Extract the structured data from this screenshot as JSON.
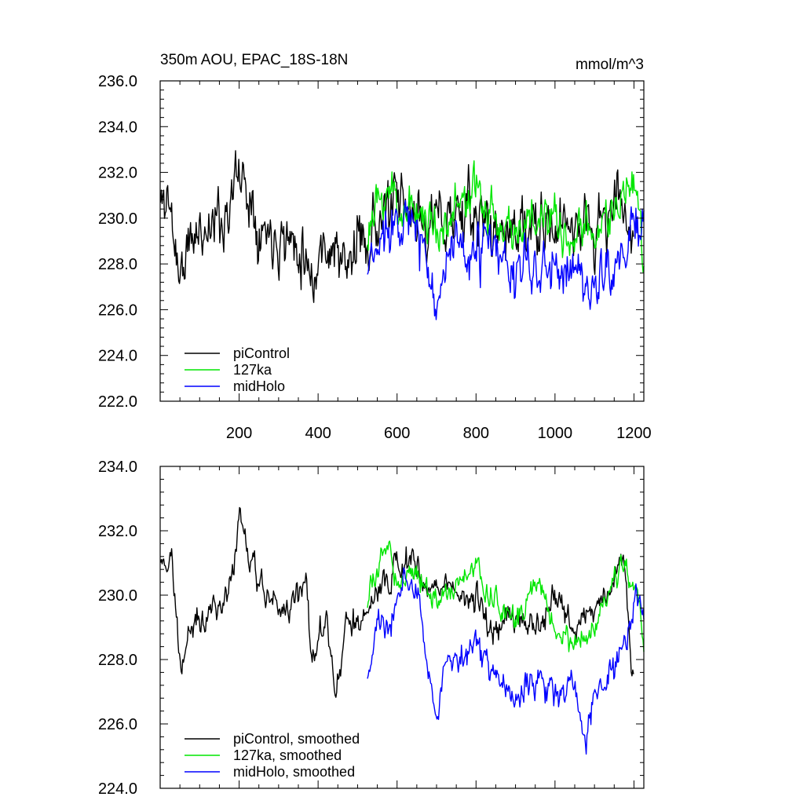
{
  "figure": {
    "title_left": "350m AOU, EPAC_18S-18N",
    "title_right": "mmol/m^3"
  },
  "colors": {
    "piControl": "#000000",
    "127ka": "#00e600",
    "midHolo": "#0000ff"
  },
  "chart_data": [
    {
      "type": "line",
      "panel": "top",
      "title": "350m AOU, EPAC_18S-18N",
      "units": "mmol/m^3",
      "xlim": [
        0,
        1225
      ],
      "ylim": [
        222,
        236
      ],
      "xticks": [
        200,
        400,
        600,
        800,
        1000,
        1200
      ],
      "xtick_labels": [
        "200",
        "400",
        "600",
        "800",
        "1000",
        "1200"
      ],
      "yticks": [
        222,
        224,
        226,
        228,
        230,
        232,
        234,
        236
      ],
      "ytick_labels": [
        "222.0",
        "224.0",
        "226.0",
        "228.0",
        "230.0",
        "232.0",
        "234.0",
        "236.0"
      ],
      "legend_position": "bottom-left",
      "series": [
        {
          "name": "piControl",
          "x_start": 1,
          "x_end": 1200,
          "mean": 229.6,
          "noise": 1.55,
          "anchors": [
            [
              1,
              230.5
            ],
            [
              20,
              231.0
            ],
            [
              50,
              227.5
            ],
            [
              80,
              229.0
            ],
            [
              120,
              229.8
            ],
            [
              160,
              230.0
            ],
            [
              200,
              232.0
            ],
            [
              230,
              231.0
            ],
            [
              260,
              229.5
            ],
            [
              300,
              229.5
            ],
            [
              330,
              229.0
            ],
            [
              360,
              229.0
            ],
            [
              385,
              227.5
            ],
            [
              420,
              229.0
            ],
            [
              450,
              228.5
            ],
            [
              470,
              227.5
            ],
            [
              500,
              229.0
            ],
            [
              550,
              229.8
            ],
            [
              600,
              230.5
            ],
            [
              650,
              230.0
            ],
            [
              700,
              229.8
            ],
            [
              750,
              230.3
            ],
            [
              800,
              230.0
            ],
            [
              850,
              229.5
            ],
            [
              900,
              229.5
            ],
            [
              950,
              229.3
            ],
            [
              1000,
              229.5
            ],
            [
              1050,
              230.0
            ],
            [
              1100,
              229.3
            ],
            [
              1150,
              230.5
            ],
            [
              1175,
              231.0
            ],
            [
              1200,
              228.5
            ]
          ],
          "seed": 11
        },
        {
          "name": "127ka",
          "x_start": 525,
          "x_end": 1225,
          "mean": 230.2,
          "noise": 1.2,
          "anchors": [
            [
              525,
              229.5
            ],
            [
              560,
              230.5
            ],
            [
              580,
              231.5
            ],
            [
              600,
              230.5
            ],
            [
              650,
              230.5
            ],
            [
              700,
              229.5
            ],
            [
              750,
              230.5
            ],
            [
              800,
              231.0
            ],
            [
              850,
              230.0
            ],
            [
              900,
              229.5
            ],
            [
              950,
              230.0
            ],
            [
              1000,
              229.5
            ],
            [
              1050,
              229.0
            ],
            [
              1100,
              229.5
            ],
            [
              1150,
              230.5
            ],
            [
              1175,
              231.0
            ],
            [
              1210,
              230.5
            ],
            [
              1225,
              228.0
            ]
          ],
          "seed": 23
        },
        {
          "name": "midHolo",
          "x_start": 525,
          "x_end": 1225,
          "mean": 228.8,
          "noise": 1.35,
          "anchors": [
            [
              525,
              227.5
            ],
            [
              560,
              229.0
            ],
            [
              600,
              230.5
            ],
            [
              640,
              229.5
            ],
            [
              680,
              228.0
            ],
            [
              700,
              226.5
            ],
            [
              730,
              228.5
            ],
            [
              780,
              228.0
            ],
            [
              820,
              229.0
            ],
            [
              860,
              228.0
            ],
            [
              900,
              227.5
            ],
            [
              950,
              228.0
            ],
            [
              1000,
              227.5
            ],
            [
              1040,
              228.0
            ],
            [
              1080,
              227.0
            ],
            [
              1120,
              227.5
            ],
            [
              1150,
              228.0
            ],
            [
              1180,
              228.5
            ],
            [
              1200,
              229.5
            ],
            [
              1225,
              229.5
            ]
          ],
          "seed": 37
        }
      ],
      "legend": [
        {
          "name": "piControl",
          "label": "piControl"
        },
        {
          "name": "127ka",
          "label": "127ka"
        },
        {
          "name": "midHolo",
          "label": "midHolo"
        }
      ]
    },
    {
      "type": "line",
      "panel": "bottom",
      "xlim": [
        0,
        1225
      ],
      "ylim": [
        224,
        234
      ],
      "xticks": [
        200,
        400,
        600,
        800,
        1000,
        1200
      ],
      "yticks": [
        224,
        226,
        228,
        230,
        232,
        234
      ],
      "ytick_labels": [
        "224.0",
        "226.0",
        "228.0",
        "230.0",
        "232.0",
        "234.0"
      ],
      "legend_position": "bottom-left",
      "series": [
        {
          "name": "piControl, smoothed",
          "x_start": 1,
          "x_end": 1200,
          "mean": 229.6,
          "noise": 0.55,
          "anchors": [
            [
              1,
              230.8
            ],
            [
              15,
              231.0
            ],
            [
              30,
              231.5
            ],
            [
              45,
              228.5
            ],
            [
              55,
              227.5
            ],
            [
              70,
              228.8
            ],
            [
              100,
              229.2
            ],
            [
              130,
              229.5
            ],
            [
              170,
              229.8
            ],
            [
              200,
              232.5
            ],
            [
              230,
              231.0
            ],
            [
              260,
              230.0
            ],
            [
              300,
              229.5
            ],
            [
              340,
              229.8
            ],
            [
              370,
              230.5
            ],
            [
              385,
              228.0
            ],
            [
              420,
              229.3
            ],
            [
              445,
              226.8
            ],
            [
              470,
              229.0
            ],
            [
              500,
              229.0
            ],
            [
              530,
              229.5
            ],
            [
              560,
              230.5
            ],
            [
              600,
              230.8
            ],
            [
              640,
              231.0
            ],
            [
              680,
              230.0
            ],
            [
              720,
              230.5
            ],
            [
              760,
              230.0
            ],
            [
              800,
              229.8
            ],
            [
              840,
              229.0
            ],
            [
              880,
              229.5
            ],
            [
              920,
              229.0
            ],
            [
              960,
              229.0
            ],
            [
              1000,
              230.0
            ],
            [
              1050,
              229.0
            ],
            [
              1100,
              229.5
            ],
            [
              1150,
              230.5
            ],
            [
              1175,
              231.3
            ],
            [
              1195,
              227.5
            ]
          ],
          "seed": 41
        },
        {
          "name": "127ka, smoothed",
          "x_start": 525,
          "x_end": 1225,
          "mean": 230.0,
          "noise": 0.45,
          "anchors": [
            [
              525,
              229.8
            ],
            [
              560,
              231.0
            ],
            [
              575,
              231.8
            ],
            [
              600,
              230.5
            ],
            [
              650,
              230.8
            ],
            [
              700,
              229.8
            ],
            [
              750,
              230.2
            ],
            [
              800,
              231.0
            ],
            [
              830,
              230.0
            ],
            [
              870,
              229.5
            ],
            [
              910,
              229.3
            ],
            [
              960,
              230.5
            ],
            [
              1000,
              229.0
            ],
            [
              1040,
              228.5
            ],
            [
              1080,
              228.5
            ],
            [
              1120,
              229.5
            ],
            [
              1150,
              230.5
            ],
            [
              1180,
              231.0
            ],
            [
              1210,
              230.0
            ],
            [
              1225,
              228.2
            ]
          ],
          "seed": 53
        },
        {
          "name": "midHolo, smoothed",
          "x_start": 525,
          "x_end": 1225,
          "mean": 228.5,
          "noise": 0.55,
          "anchors": [
            [
              525,
              227.2
            ],
            [
              545,
              229.0
            ],
            [
              580,
              229.0
            ],
            [
              620,
              230.8
            ],
            [
              660,
              229.5
            ],
            [
              700,
              226.0
            ],
            [
              720,
              227.5
            ],
            [
              760,
              228.0
            ],
            [
              800,
              228.5
            ],
            [
              850,
              227.5
            ],
            [
              900,
              226.8
            ],
            [
              950,
              227.5
            ],
            [
              1000,
              227.0
            ],
            [
              1040,
              227.5
            ],
            [
              1075,
              225.5
            ],
            [
              1100,
              227.0
            ],
            [
              1150,
              227.5
            ],
            [
              1190,
              229.0
            ],
            [
              1205,
              229.8
            ],
            [
              1225,
              229.5
            ]
          ],
          "seed": 67
        }
      ],
      "legend": [
        {
          "name": "piControl, smoothed",
          "label": "piControl, smoothed"
        },
        {
          "name": "127ka, smoothed",
          "label": "127ka, smoothed"
        },
        {
          "name": "midHolo, smoothed",
          "label": "midHolo, smoothed"
        }
      ]
    }
  ]
}
